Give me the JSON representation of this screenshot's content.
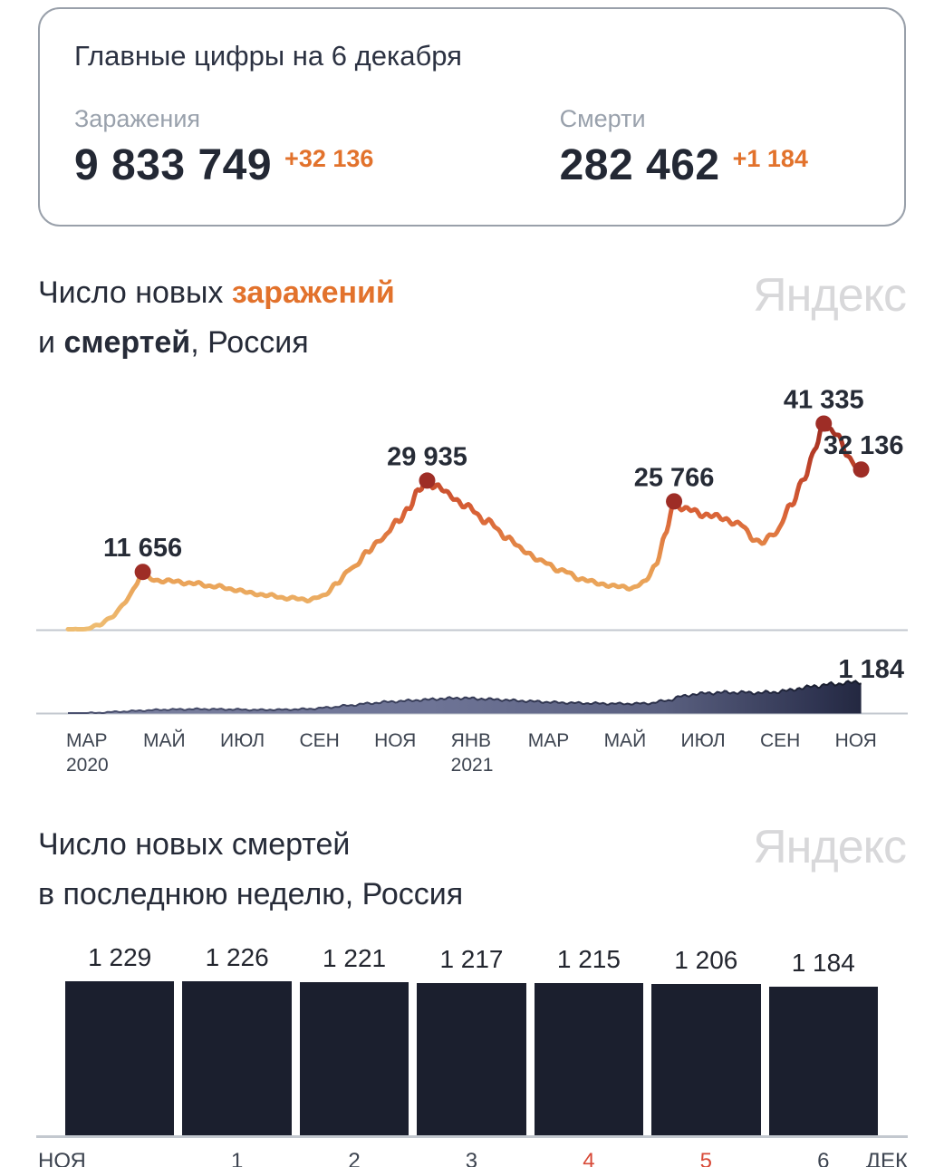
{
  "summary_card": {
    "title": "Главные цифры на 6 декабря",
    "infections": {
      "label": "Заражения",
      "value": "9 833 749",
      "delta": "+32 136"
    },
    "deaths": {
      "label": "Смерти",
      "value": "282 462",
      "delta": "+1 184"
    }
  },
  "watermark": "Яндекс",
  "chart1_title": {
    "t1": "Число новых ",
    "hl": "заражений",
    "t2a": "и ",
    "t2b": "смертей",
    "t2c": ", Россия"
  },
  "chart2_title": {
    "l1": "Число новых смертей",
    "l2": "в последнюю неделю, Россия"
  },
  "palette": {
    "accent": "#e2722c",
    "red": "#d84a38",
    "marker": "#9e2d26",
    "bar_fill": "#1b1f2e",
    "axis": "#c3c8cf",
    "watermark_gray": "#d8d8da",
    "line_gradient_bottom_to_top": [
      "#eebd72",
      "#e89a50",
      "#d96136",
      "#bc4129",
      "#97291f"
    ],
    "area_gradient_left_to_right": [
      "#7d83a1",
      "#6e7496",
      "#5a6080",
      "#2e3350",
      "#171b2e"
    ],
    "area_edge_left_to_right": [
      "#4d5372",
      "#262b44",
      "#10141f"
    ]
  },
  "chart_data": [
    {
      "type": "line",
      "name": "new-infections-russia",
      "x_unit": "months_since_march_2020",
      "x_range": [
        0,
        21.2
      ],
      "ymax": 41335,
      "ylim": [
        0,
        41335
      ],
      "grid": false,
      "anchors": [
        [
          0,
          0
        ],
        [
          0.4,
          150
        ],
        [
          0.8,
          900
        ],
        [
          1.2,
          2800
        ],
        [
          1.5,
          5200
        ],
        [
          1.8,
          8800
        ],
        [
          2.0,
          11656
        ],
        [
          2.2,
          10200
        ],
        [
          2.5,
          9900
        ],
        [
          2.9,
          9700
        ],
        [
          3.4,
          9300
        ],
        [
          3.9,
          8800
        ],
        [
          4.4,
          8200
        ],
        [
          4.9,
          7400
        ],
        [
          5.4,
          6900
        ],
        [
          5.9,
          6400
        ],
        [
          6.4,
          6100
        ],
        [
          6.8,
          6700
        ],
        [
          7.2,
          9500
        ],
        [
          7.6,
          12500
        ],
        [
          8.0,
          15500
        ],
        [
          8.4,
          18500
        ],
        [
          8.8,
          21500
        ],
        [
          9.1,
          24500
        ],
        [
          9.35,
          27500
        ],
        [
          9.6,
          29935
        ],
        [
          9.85,
          28800
        ],
        [
          10.2,
          27000
        ],
        [
          10.7,
          24500
        ],
        [
          11.2,
          21800
        ],
        [
          11.7,
          18800
        ],
        [
          12.2,
          15800
        ],
        [
          12.7,
          13600
        ],
        [
          13.2,
          11900
        ],
        [
          13.7,
          10300
        ],
        [
          14.2,
          9300
        ],
        [
          14.7,
          8700
        ],
        [
          15.1,
          8500
        ],
        [
          15.4,
          9500
        ],
        [
          15.7,
          13000
        ],
        [
          15.95,
          18500
        ],
        [
          16.2,
          25766
        ],
        [
          16.5,
          24200
        ],
        [
          17.0,
          23200
        ],
        [
          17.5,
          22400
        ],
        [
          18.0,
          21000
        ],
        [
          18.3,
          18500
        ],
        [
          18.55,
          17400
        ],
        [
          18.9,
          19500
        ],
        [
          19.3,
          24500
        ],
        [
          19.7,
          31000
        ],
        [
          20.0,
          36500
        ],
        [
          20.2,
          41335
        ],
        [
          20.5,
          39500
        ],
        [
          20.8,
          35500
        ],
        [
          21.0,
          33500
        ],
        [
          21.2,
          32136
        ]
      ],
      "peaks": [
        {
          "m": 2.0,
          "v": 11656,
          "label": "11 656"
        },
        {
          "m": 9.6,
          "v": 29935,
          "label": "29 935"
        },
        {
          "m": 16.2,
          "v": 25766,
          "label": "25 766"
        },
        {
          "m": 20.2,
          "v": 41335,
          "label": "41 335"
        },
        {
          "m": 21.2,
          "v": 32136,
          "label": "32 136",
          "align": "end"
        }
      ],
      "ticks": [
        {
          "t": "МАР",
          "sub": "2020"
        },
        {
          "t": "МАЙ"
        },
        {
          "t": "ИЮЛ"
        },
        {
          "t": "СЕН"
        },
        {
          "t": "НОЯ"
        },
        {
          "t": "ЯНВ",
          "sub": "2021"
        },
        {
          "t": "МАР"
        },
        {
          "t": "МАЙ"
        },
        {
          "t": "ИЮЛ"
        },
        {
          "t": "СЕН"
        },
        {
          "t": "НОЯ"
        }
      ]
    },
    {
      "type": "area",
      "name": "new-deaths-russia",
      "x_unit": "months_since_march_2020",
      "x_range": [
        0,
        21.2
      ],
      "ymax": 1184,
      "end_label": "1 184",
      "anchors": [
        [
          0,
          0
        ],
        [
          0.8,
          25
        ],
        [
          1.4,
          70
        ],
        [
          2.0,
          110
        ],
        [
          2.5,
          140
        ],
        [
          3.0,
          155
        ],
        [
          3.5,
          165
        ],
        [
          4.0,
          160
        ],
        [
          4.5,
          150
        ],
        [
          5.0,
          135
        ],
        [
          5.5,
          140
        ],
        [
          6.0,
          150
        ],
        [
          6.5,
          175
        ],
        [
          7.0,
          230
        ],
        [
          7.5,
          300
        ],
        [
          8.0,
          370
        ],
        [
          8.5,
          430
        ],
        [
          9.0,
          470
        ],
        [
          9.5,
          510
        ],
        [
          10.0,
          555
        ],
        [
          10.5,
          580
        ],
        [
          11.0,
          550
        ],
        [
          11.5,
          520
        ],
        [
          12.0,
          480
        ],
        [
          12.5,
          450
        ],
        [
          13.0,
          415
        ],
        [
          13.5,
          395
        ],
        [
          14.0,
          380
        ],
        [
          14.5,
          370
        ],
        [
          15.0,
          365
        ],
        [
          15.5,
          380
        ],
        [
          16.0,
          480
        ],
        [
          16.4,
          640
        ],
        [
          16.8,
          730
        ],
        [
          17.2,
          770
        ],
        [
          17.6,
          790
        ],
        [
          18.0,
          785
        ],
        [
          18.4,
          775
        ],
        [
          18.8,
          790
        ],
        [
          19.2,
          850
        ],
        [
          19.6,
          950
        ],
        [
          20.0,
          1030
        ],
        [
          20.4,
          1090
        ],
        [
          20.8,
          1140
        ],
        [
          21.2,
          1184
        ]
      ]
    },
    {
      "type": "bar",
      "name": "new-deaths-last-week-russia",
      "values": [
        1229,
        1226,
        1221,
        1217,
        1215,
        1206,
        1184
      ],
      "value_labels": [
        "1 229",
        "1 226",
        "1 221",
        "1 217",
        "1 215",
        "1 206",
        "1 184"
      ],
      "bottom_labels": [
        "",
        "1",
        "2",
        "3",
        "4",
        "5",
        "6"
      ],
      "red_bottom_labels": [
        "4",
        "5"
      ],
      "left_label": "НОЯ",
      "right_label": "ДЕК"
    }
  ]
}
